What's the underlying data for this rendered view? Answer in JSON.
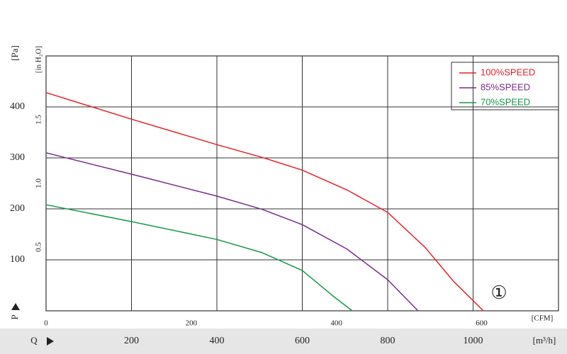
{
  "chart_data": {
    "type": "line",
    "y_label": "[Pa]",
    "y2_label": "[in H₂O]",
    "x_label": "[m³/h]",
    "x2_label": "[CFM]",
    "y_symbol": "P",
    "x_symbol": "Q",
    "annotation": "①",
    "xlim": [
      0,
      1200
    ],
    "xticks": [
      200,
      400,
      600,
      800,
      1000
    ],
    "x2lim": [
      0,
      706
    ],
    "x2ticks": [
      0,
      200,
      400,
      600
    ],
    "ylim": [
      0,
      500
    ],
    "yticks": [
      100,
      200,
      300,
      400
    ],
    "y2lim": [
      0,
      2.0
    ],
    "y2ticks": [
      0.5,
      {
        "value": 1,
        "label": "1.0"
      },
      1.5
    ],
    "grid": true,
    "legend": "top-right",
    "series": [
      {
        "name": "100%SPEED",
        "color": "#e8202a",
        "x": [
          0,
          200,
          400,
          506,
          600,
          705,
          800,
          888,
          954,
          1024
        ],
        "values": [
          428,
          376,
          326,
          301,
          276,
          237,
          193,
          124,
          58,
          0
        ]
      },
      {
        "name": "85%SPEED",
        "color": "#7b2a8c",
        "x": [
          0,
          200,
          400,
          506,
          600,
          705,
          800,
          871
        ],
        "values": [
          310,
          268,
          225,
          199,
          169,
          121,
          61,
          0
        ]
      },
      {
        "name": "70%SPEED",
        "color": "#139a48",
        "x": [
          0,
          200,
          400,
          506,
          600,
          672,
          717
        ],
        "values": [
          208,
          175,
          140,
          114,
          79,
          29,
          0
        ]
      }
    ]
  }
}
